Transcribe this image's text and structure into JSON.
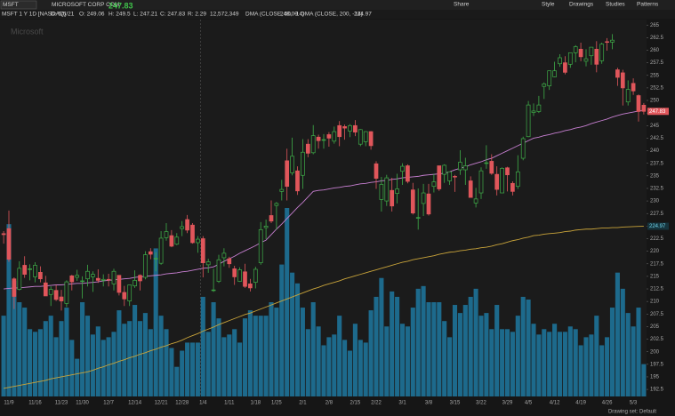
{
  "toolbar": {
    "symbol": "MSFT",
    "company": "MICROSOFT CORP COM",
    "buttons": [
      "Share",
      "Style",
      "Drawings",
      "Studies",
      "Patterns"
    ]
  },
  "info": [
    "D: 5/5/21",
    "O: 249.06",
    "H: 249.5",
    "L: 247.21",
    "C: 247.83",
    "R: 2.29"
  ],
  "volume_text": "12,572,349",
  "footer": "Drawing set: Default",
  "chart_data": {
    "type": "candlestick",
    "title": "MSFT 1 Y 1D [NASDAQ]",
    "watermark": "Microsoft",
    "categories": [
      null,
      "11/9",
      null,
      null,
      null,
      null,
      "11/16",
      null,
      null,
      null,
      null,
      "11/23",
      null,
      null,
      null,
      "11/30",
      null,
      null,
      null,
      null,
      "12/7",
      null,
      null,
      null,
      null,
      "12/14",
      null,
      null,
      null,
      null,
      "12/21",
      null,
      null,
      null,
      "12/28",
      null,
      null,
      null,
      "1/4",
      null,
      null,
      null,
      null,
      "1/11",
      null,
      null,
      null,
      null,
      "1/18",
      null,
      null,
      null,
      "1/25",
      null,
      null,
      null,
      null,
      "2/1",
      null,
      null,
      null,
      null,
      "2/8",
      null,
      null,
      null,
      null,
      "2/15",
      null,
      null,
      null,
      "2/22",
      null,
      null,
      null,
      null,
      "3/1",
      null,
      null,
      null,
      null,
      "3/8",
      null,
      null,
      null,
      null,
      "3/15",
      null,
      null,
      null,
      null,
      "3/22",
      null,
      null,
      null,
      null,
      "3/29",
      null,
      null,
      null,
      "4/5",
      null,
      null,
      null,
      null,
      "4/12",
      null,
      null,
      null,
      null,
      "4/19",
      null,
      null,
      null,
      null,
      "4/26",
      null,
      null,
      null,
      null,
      "5/3",
      null,
      null
    ],
    "open": [
      223.5,
      224.5,
      214.5,
      212.4,
      217.2,
      216.4,
      214.9,
      215.8,
      213.7,
      211.4,
      212.2,
      210.9,
      209.6,
      215.1,
      214.8,
      214.1,
      214.5,
      214.9,
      214.6,
      214.2,
      214.4,
      213.5,
      215.2,
      211.8,
      210.1,
      213.1,
      215.2,
      214.8,
      219.9,
      218.6,
      217.6,
      222.7,
      223.1,
      221.4,
      224.5,
      226.3,
      225.2,
      221.7,
      222.5,
      217.3,
      212.2,
      214.0,
      218.7,
      218.5,
      216.5,
      214.0,
      215.9,
      213.5,
      213.8,
      217.7,
      224.7,
      227.1,
      229.1,
      231.9,
      238.0,
      235.6,
      235.99,
      235.1,
      241.3,
      239.6,
      242.7,
      242.2,
      243.2,
      241.9,
      245.0,
      244.8,
      243.9,
      245.0,
      241.3,
      241.8,
      243.8,
      237.4,
      230.3,
      230.0,
      232.1,
      231.5,
      235.9,
      237.0,
      232.2,
      226.7,
      229.5,
      231.4,
      232.9,
      237.0,
      235.3,
      234.0,
      234.9,
      236.2,
      236.2,
      234.0,
      229.6,
      231.6,
      237.5,
      237.9,
      235.3,
      231.6,
      236.6,
      233.5,
      232.9,
      238.5,
      242.8,
      247.6,
      247.8,
      252.8,
      252.9,
      254.7,
      257.3,
      257.5,
      257.2,
      259.5,
      260.2,
      257.8,
      258.9,
      260.2,
      257.9,
      261.7,
      261.6,
      256.1,
      255.5,
      249.7,
      253.4,
      250.97,
      249.06
    ],
    "high": [
      224.0,
      228.1,
      214.8,
      218.0,
      219.0,
      217.4,
      217.8,
      217.0,
      215.1,
      213.0,
      213.3,
      212.3,
      214.2,
      215.3,
      216.3,
      215.0,
      217.3,
      216.0,
      216.4,
      215.4,
      215.5,
      216.5,
      215.2,
      213.1,
      213.3,
      216.2,
      215.4,
      220.0,
      220.6,
      219.8,
      224.0,
      225.6,
      224.2,
      223.6,
      226.0,
      227.2,
      225.6,
      223.0,
      223.0,
      218.5,
      216.5,
      219.3,
      220.6,
      218.9,
      217.1,
      216.8,
      217.5,
      214.5,
      216.9,
      225.8,
      226.3,
      230.1,
      229.8,
      234.2,
      240.4,
      242.6,
      236.9,
      242.3,
      242.3,
      245.1,
      243.2,
      243.3,
      243.7,
      244.8,
      245.9,
      245.2,
      245.3,
      246.1,
      244.3,
      243.9,
      243.9,
      237.9,
      234.8,
      235.2,
      234.6,
      235.4,
      237.5,
      237.3,
      233.6,
      232.5,
      233.4,
      233.4,
      235.4,
      237.0,
      237.3,
      235.8,
      235.2,
      240.1,
      238.6,
      234.9,
      232.6,
      236.7,
      241.1,
      239.3,
      236.9,
      236.7,
      236.8,
      233.9,
      239.1,
      242.8,
      249.9,
      249.4,
      250.9,
      253.6,
      255.9,
      257.7,
      259.2,
      258.8,
      259.5,
      261.0,
      261.5,
      260.2,
      260.5,
      261.8,
      261.5,
      262.4,
      263.2,
      256.5,
      256.1,
      254.0,
      254.4,
      251.2,
      249.5
    ],
    "low": [
      221.5,
      217.9,
      208.5,
      212.2,
      214.7,
      214.2,
      213.8,
      213.8,
      211.1,
      209.1,
      210.1,
      208.2,
      208.9,
      212.2,
      214.1,
      210.6,
      213.0,
      211.9,
      213.7,
      213.0,
      213.0,
      212.2,
      211.2,
      209.1,
      209.1,
      212.7,
      212.2,
      214.4,
      218.4,
      216.0,
      217.3,
      222.1,
      220.8,
      221.2,
      223.0,
      223.6,
      221.5,
      219.7,
      214.8,
      215.7,
      211.9,
      213.7,
      217.0,
      216.7,
      213.3,
      213.9,
      212.7,
      212.0,
      212.6,
      217.3,
      222.4,
      225.6,
      224.3,
      230.1,
      230.1,
      235.1,
      231.2,
      232.4,
      238.7,
      239.3,
      240.4,
      240.4,
      240.8,
      241.4,
      240.9,
      242.2,
      242.7,
      242.9,
      240.9,
      240.9,
      240.2,
      232.4,
      227.9,
      229.0,
      227.9,
      229.5,
      233.2,
      233.5,
      227.3,
      224.3,
      227.0,
      227.1,
      231.7,
      232.0,
      233.6,
      233.2,
      231.8,
      235.2,
      233.2,
      230.7,
      228.7,
      230.4,
      236.4,
      235.2,
      231.1,
      231.6,
      231.9,
      231.1,
      232.4,
      238.1,
      242.7,
      246.9,
      247.5,
      250.3,
      252.1,
      254.6,
      256.7,
      255.2,
      256.5,
      257.6,
      257.8,
      256.8,
      257.1,
      255.6,
      257.3,
      259.9,
      260.2,
      252.9,
      249.0,
      249.0,
      251.1,
      245.8,
      247.21
    ],
    "close": [
      223.3,
      218.4,
      211.0,
      216.6,
      215.4,
      216.5,
      217.2,
      214.5,
      211.1,
      212.4,
      210.4,
      210.1,
      213.9,
      213.9,
      215.2,
      214.1,
      216.0,
      215.4,
      214.2,
      214.4,
      214.3,
      216.0,
      211.8,
      210.5,
      213.3,
      214.2,
      214.1,
      219.3,
      219.4,
      218.6,
      222.6,
      223.9,
      221.0,
      222.8,
      224.9,
      224.2,
      221.7,
      222.4,
      217.7,
      217.9,
      212.3,
      218.3,
      219.6,
      217.5,
      214.9,
      216.3,
      213.0,
      212.7,
      216.4,
      224.3,
      225.0,
      226.0,
      229.5,
      232.3,
      232.9,
      238.9,
      232.0,
      239.7,
      239.5,
      243.0,
      242.0,
      242.2,
      242.5,
      243.8,
      242.8,
      244.5,
      245.0,
      243.7,
      244.2,
      243.8,
      241.0,
      234.5,
      233.3,
      234.6,
      229.0,
      232.4,
      236.9,
      233.9,
      227.6,
      226.7,
      231.6,
      227.4,
      233.8,
      232.4,
      237.1,
      235.8,
      234.8,
      237.7,
      237.0,
      230.7,
      230.4,
      236.0,
      237.6,
      235.5,
      232.3,
      236.5,
      235.2,
      231.9,
      235.8,
      242.4,
      249.1,
      247.9,
      249.1,
      253.3,
      255.9,
      255.9,
      258.5,
      255.6,
      259.5,
      260.7,
      258.7,
      258.3,
      260.6,
      257.2,
      261.2,
      261.6,
      262.0,
      254.6,
      252.5,
      252.2,
      251.9,
      247.8,
      247.83
    ],
    "up_color": "#3fae49",
    "down_color": "#e0565b",
    "volume": {
      "color": "#1d6a8c",
      "axis": "y2",
      "values": [
        30,
        64,
        43,
        35,
        33,
        25,
        24,
        25,
        28,
        30,
        22,
        28,
        33,
        21,
        14,
        35,
        30,
        23,
        26,
        21,
        22,
        24,
        32,
        27,
        28,
        34,
        28,
        31,
        25,
        55,
        30,
        25,
        18,
        11,
        17,
        20,
        20,
        20,
        37,
        24,
        35,
        29,
        22,
        23,
        25,
        20,
        29,
        32,
        30,
        30,
        30,
        35,
        33,
        49,
        70,
        46,
        42,
        33,
        25,
        35,
        26,
        19,
        22,
        23,
        30,
        21,
        17,
        27,
        21,
        20,
        32,
        37,
        44,
        26,
        39,
        37,
        27,
        26,
        33,
        40,
        41,
        35,
        35,
        35,
        28,
        22,
        34,
        31,
        34,
        37,
        40,
        30,
        31,
        25,
        34,
        25,
        25,
        24,
        30,
        37,
        36,
        27,
        23,
        25,
        24,
        27,
        24,
        24,
        26,
        25,
        19,
        22,
        23,
        30,
        19,
        22,
        33,
        46,
        40,
        31,
        26,
        33,
        12
      ]
    },
    "series": [
      {
        "name": "DMA (CLOSE, 50, -14)",
        "color": "#c77fd1",
        "values": [
          212.5,
          212.6,
          212.7,
          212.7,
          212.8,
          212.9,
          213.0,
          213.0,
          213.1,
          213.2,
          213.3,
          213.3,
          213.4,
          213.5,
          213.6,
          213.6,
          213.7,
          213.8,
          213.9,
          214.1,
          214.2,
          214.3,
          214.4,
          214.5,
          214.6,
          214.8,
          214.9,
          215.0,
          215.1,
          215.2,
          215.3,
          215.5,
          215.6,
          215.7,
          215.9,
          216.0,
          216.2,
          216.4,
          216.6,
          216.7,
          216.9,
          217.4,
          218.0,
          218.5,
          219.0,
          219.6,
          220.1,
          220.6,
          221.1,
          221.7,
          222.2,
          223.3,
          224.4,
          225.4,
          226.5,
          227.6,
          228.7,
          229.7,
          230.8,
          231.9,
          232.1,
          232.2,
          232.4,
          232.6,
          232.7,
          232.9,
          233.0,
          233.2,
          233.4,
          233.5,
          233.7,
          233.8,
          234.0,
          234.1,
          234.3,
          234.4,
          234.6,
          234.7,
          234.8,
          234.9,
          235.1,
          235.2,
          235.3,
          235.4,
          235.5,
          235.8,
          236.2,
          236.5,
          236.8,
          237.2,
          237.5,
          237.8,
          238.2,
          238.5,
          239.0,
          239.5,
          240.0,
          240.5,
          241.0,
          241.5,
          242.0,
          242.5,
          242.7,
          243.0,
          243.2,
          243.5,
          243.7,
          244.0,
          244.2,
          244.5,
          244.7,
          245.0,
          245.4,
          245.7,
          246.0,
          246.3,
          246.7,
          247.0,
          247.3,
          247.5,
          247.7,
          247.9,
          248.09
        ]
      },
      {
        "name": "DMA (CLOSE, 200, -14)",
        "color": "#c9a43a",
        "values": [
          192.7,
          192.9,
          193.1,
          193.3,
          193.5,
          193.7,
          193.9,
          194.1,
          194.3,
          194.6,
          194.8,
          195.0,
          195.2,
          195.4,
          195.6,
          195.8,
          196.0,
          196.3,
          196.7,
          197.0,
          197.4,
          197.7,
          198.1,
          198.4,
          198.8,
          199.1,
          199.5,
          199.8,
          200.2,
          200.5,
          200.9,
          201.2,
          201.6,
          201.9,
          202.3,
          202.8,
          203.2,
          203.6,
          204.1,
          204.5,
          204.9,
          205.4,
          205.8,
          206.2,
          206.6,
          207.0,
          207.4,
          207.7,
          208.1,
          208.5,
          208.9,
          209.3,
          209.7,
          210.1,
          210.5,
          210.9,
          211.3,
          211.7,
          212.1,
          212.5,
          212.8,
          213.2,
          213.5,
          213.8,
          214.1,
          214.5,
          214.8,
          215.1,
          215.4,
          215.7,
          216.0,
          216.3,
          216.6,
          216.9,
          217.2,
          217.5,
          217.8,
          218.0,
          218.3,
          218.5,
          218.7,
          218.9,
          219.1,
          219.4,
          219.6,
          219.8,
          219.9,
          220.1,
          220.2,
          220.4,
          220.5,
          220.7,
          220.8,
          221.0,
          221.3,
          221.5,
          221.8,
          222.1,
          222.3,
          222.6,
          222.8,
          223.1,
          223.2,
          223.4,
          223.5,
          223.6,
          223.7,
          223.9,
          224.0,
          224.2,
          224.3,
          224.4,
          224.4,
          224.5,
          224.6,
          224.6,
          224.7,
          224.7,
          224.8,
          224.85,
          224.9,
          224.94,
          224.97
        ]
      }
    ],
    "ylim": [
      191.1,
      266.1
    ],
    "yticks": [
      192.5,
      195,
      197.5,
      200,
      202.5,
      205,
      207.5,
      210,
      212.5,
      215,
      217.5,
      220,
      222.5,
      225,
      227.5,
      230,
      232.5,
      235,
      237.5,
      240,
      242.5,
      245,
      247.5,
      250,
      252.5,
      255,
      257.5,
      260,
      262.5,
      265
    ],
    "y2lim": [
      0,
      140
    ],
    "grid": false
  }
}
